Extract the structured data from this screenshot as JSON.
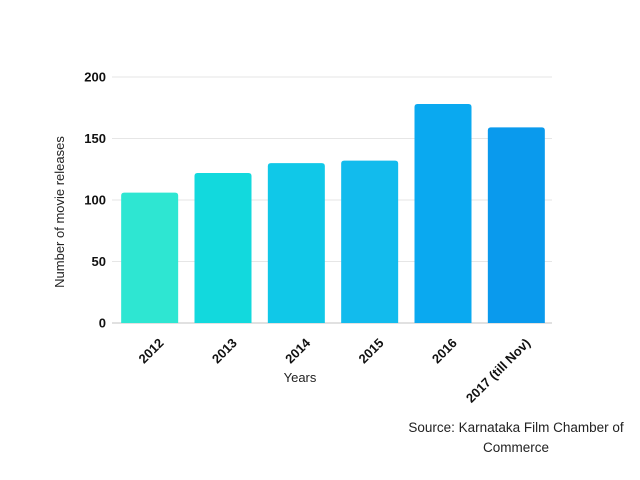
{
  "chart_data": {
    "type": "bar",
    "title": "",
    "categories": [
      "2012",
      "2013",
      "2014",
      "2015",
      "2016",
      "2017 (till Nov)"
    ],
    "values": [
      106,
      122,
      130,
      132,
      178,
      159
    ],
    "xlabel": "Years",
    "ylabel": "Number of movie releases",
    "ylim": [
      0,
      200
    ],
    "yticks": [
      0,
      50,
      100,
      150,
      200
    ],
    "grid": true,
    "bar_colors": [
      "#2ee6d2",
      "#12d9dd",
      "#10c8e8",
      "#12bbed",
      "#0aa9f0",
      "#0a9aed"
    ]
  },
  "source_text": "Source: Karnataka Film Chamber of Commerce"
}
